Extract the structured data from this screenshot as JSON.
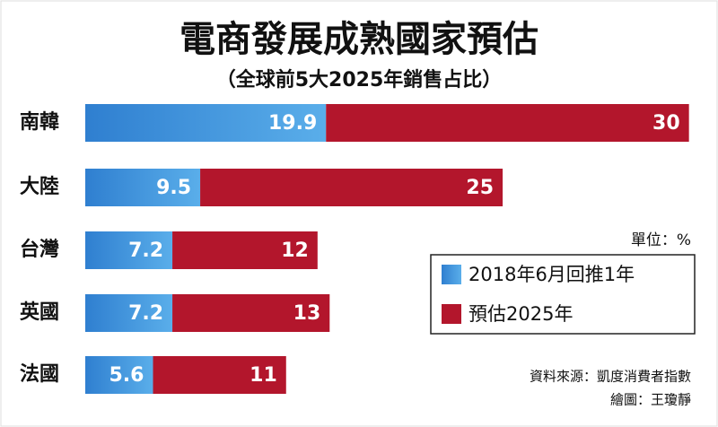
{
  "chart_data": {
    "type": "stacked-bar-horizontal",
    "title": "電商發展成熟國家預估",
    "subtitle": "（全球前5大2025年銷售占比）",
    "categories": [
      "南韓",
      "大陸",
      "台灣",
      "英國",
      "法國"
    ],
    "series": [
      {
        "name": "2018年6月回推1年",
        "color": "#3a8ad6",
        "values": [
          19.9,
          9.5,
          7.2,
          7.2,
          5.6
        ]
      },
      {
        "name": "預估2025年",
        "color": "#b3162c",
        "values": [
          30,
          25,
          12,
          13,
          11
        ]
      }
    ],
    "unit_note": "單位：%",
    "source": "資料來源：凱度消費者指數",
    "credit": "繪圖：王瓊靜"
  }
}
